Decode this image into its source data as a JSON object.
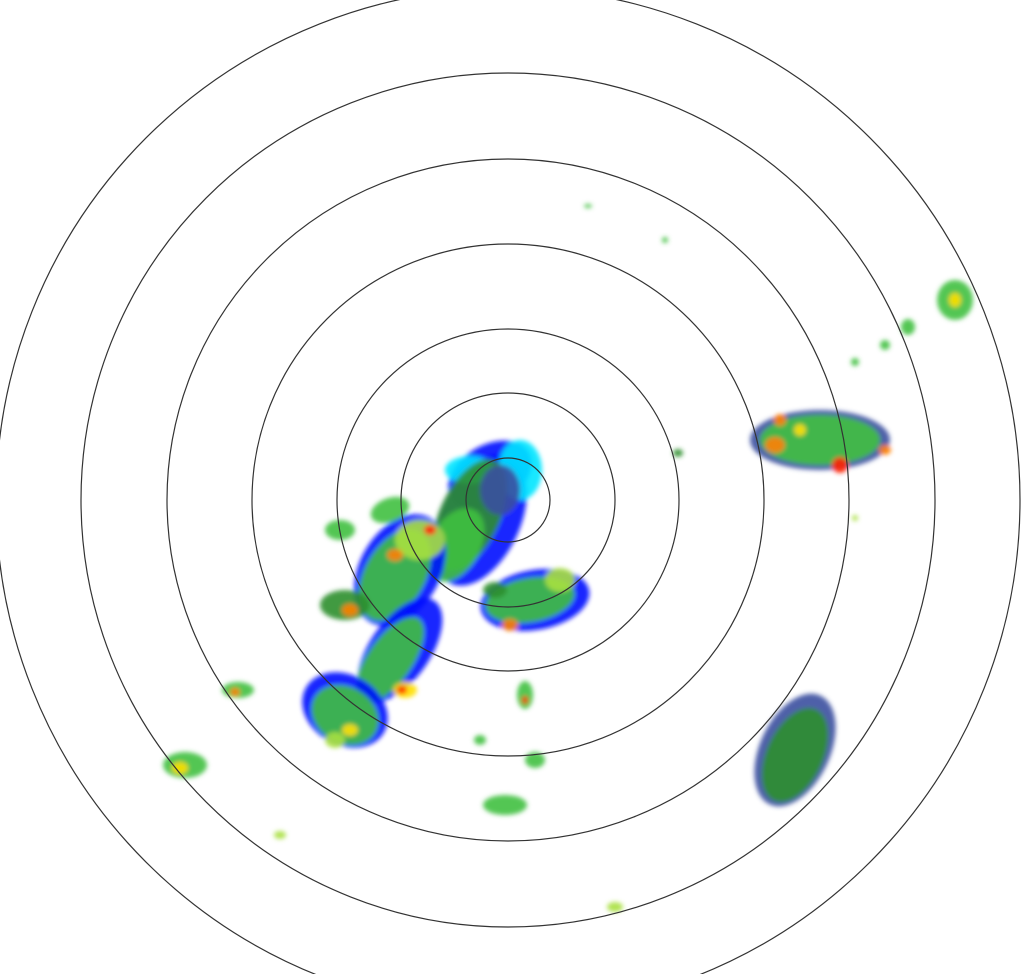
{
  "radar": {
    "range_ring_count": 7,
    "colors": {
      "ring": "#333333",
      "background": "#ffffff",
      "reflectivity_scale": [
        "#00e5ff",
        "#0010ff",
        "#3a4fa0",
        "#2f8f2f",
        "#40c040",
        "#a8e040",
        "#ffe000",
        "#ff8000",
        "#ff2000"
      ]
    }
  }
}
